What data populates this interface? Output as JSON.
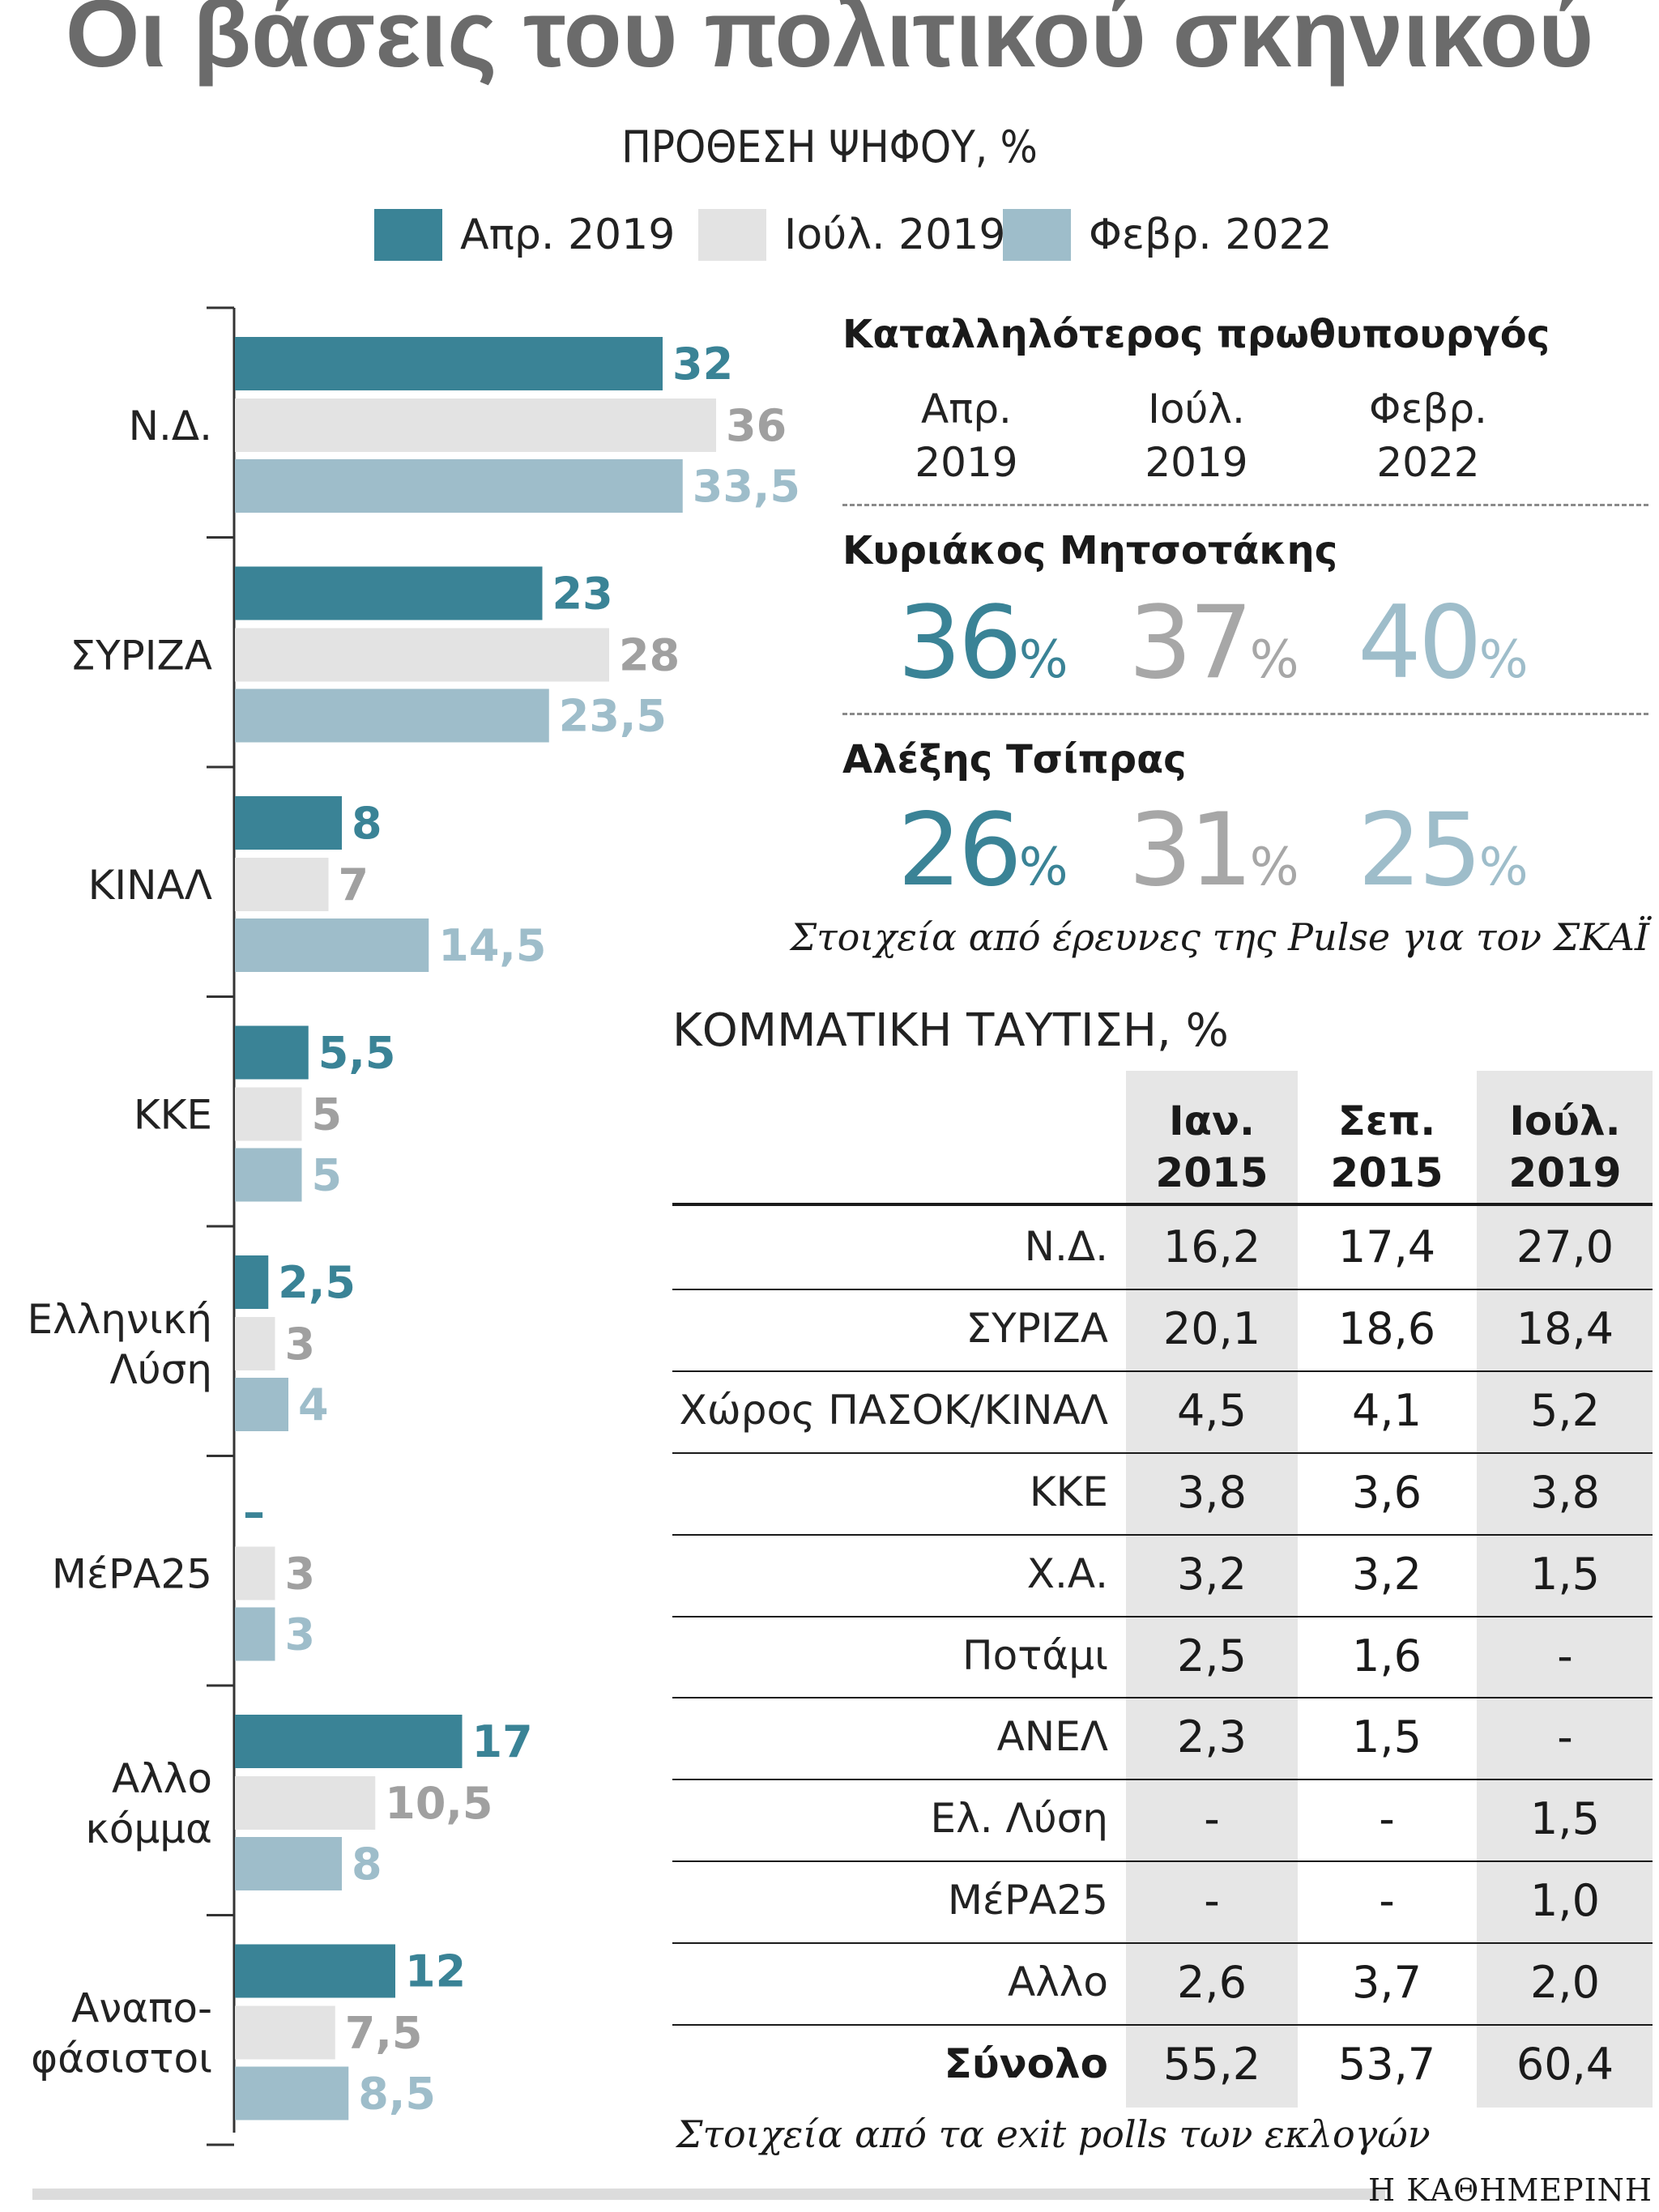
{
  "title": "Οι βάσεις του πολιτικού σκηνικού",
  "subtitle": "ΠΡΟΘΕΣΗ ΨΗΦΟΥ, %",
  "colors": {
    "apr2019": "#3a8396",
    "jul2019": "#e3e3e3",
    "feb2022": "#9ebdca"
  },
  "chart_data": {
    "type": "bar",
    "orientation": "horizontal",
    "categories": [
      [
        "Ν.Δ."
      ],
      [
        "ΣΥΡΙΖΑ"
      ],
      [
        "ΚΙΝΑΛ"
      ],
      [
        "ΚΚΕ"
      ],
      [
        "Ελληνική",
        "Λύση"
      ],
      [
        "ΜέΡΑ25"
      ],
      [
        "Αλλο",
        "κόμμα"
      ],
      [
        "Αναπο-",
        "φάσιστοι"
      ]
    ],
    "series": [
      {
        "name": "Απρ. 2019",
        "values": [
          32,
          23,
          8,
          5.5,
          2.5,
          null,
          17,
          12
        ],
        "labels": [
          "32",
          "23",
          "8",
          "5,5",
          "2,5",
          "–",
          "17",
          "12"
        ]
      },
      {
        "name": "Ιούλ. 2019",
        "values": [
          36,
          28,
          7,
          5,
          3,
          3,
          10.5,
          7.5
        ],
        "labels": [
          "36",
          "28",
          "7",
          "5",
          "3",
          "3",
          "10,5",
          "7,5"
        ]
      },
      {
        "name": "Φεβρ. 2022",
        "values": [
          33.5,
          23.5,
          14.5,
          5,
          4,
          3,
          8,
          8.5
        ],
        "labels": [
          "33,5",
          "23,5",
          "14,5",
          "5",
          "4",
          "3",
          "8",
          "8,5"
        ]
      }
    ]
  },
  "pm": {
    "title": "Καταλληλότερος πρωθυπουργός",
    "columns": [
      [
        "Απρ.",
        "2019"
      ],
      [
        "Ιούλ.",
        "2019"
      ],
      [
        "Φεβρ.",
        "2022"
      ]
    ],
    "people": [
      {
        "name": "Κυριάκος Μητσοτάκης",
        "values": [
          "36",
          "37",
          "40"
        ]
      },
      {
        "name": "Αλέξης Τσίπρας",
        "values": [
          "26",
          "31",
          "25"
        ]
      }
    ],
    "pct_sign": "%",
    "source": "Στοιχεία από έρευνες της Pulse για τον ΣΚΑΪ"
  },
  "table": {
    "title": "ΚΟΜΜΑΤΙΚΗ ΤΑΥΤΙΣΗ, %",
    "columns": [
      [
        "Ιαν.",
        "2015"
      ],
      [
        "Σεπ.",
        "2015"
      ],
      [
        "Ιούλ.",
        "2019"
      ]
    ],
    "rows": [
      {
        "label": "Ν.Δ.",
        "values": [
          "16,2",
          "17,4",
          "27,0"
        ]
      },
      {
        "label": "ΣΥΡΙΖΑ",
        "values": [
          "20,1",
          "18,6",
          "18,4"
        ]
      },
      {
        "label": "Χώρος ΠΑΣΟΚ/ΚΙΝΑΛ",
        "values": [
          "4,5",
          "4,1",
          "5,2"
        ]
      },
      {
        "label": "ΚΚΕ",
        "values": [
          "3,8",
          "3,6",
          "3,8"
        ]
      },
      {
        "label": "Χ.Α.",
        "values": [
          "3,2",
          "3,2",
          "1,5"
        ]
      },
      {
        "label": "Ποτάμι",
        "values": [
          "2,5",
          "1,6",
          "-"
        ]
      },
      {
        "label": "ΑΝΕΛ",
        "values": [
          "2,3",
          "1,5",
          "-"
        ]
      },
      {
        "label": "Ελ. Λύση",
        "values": [
          "-",
          "-",
          "1,5"
        ]
      },
      {
        "label": "ΜέΡΑ25",
        "values": [
          "-",
          "-",
          "1,0"
        ]
      },
      {
        "label": "Αλλο",
        "values": [
          "2,6",
          "3,7",
          "2,0"
        ]
      },
      {
        "label": "Σύνολο",
        "values": [
          "55,2",
          "53,7",
          "60,4"
        ],
        "bold": true
      }
    ],
    "source": "Στοιχεία από τα exit polls των εκλογών"
  },
  "brand": "Η ΚΑΘΗΜΕΡΙΝΗ"
}
